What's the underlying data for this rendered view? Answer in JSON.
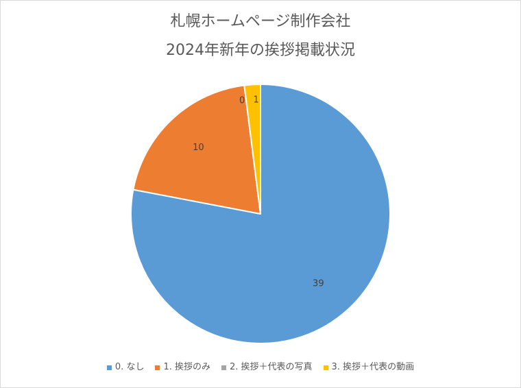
{
  "chart_data": {
    "type": "pie",
    "title": "札幌ホームページ制作会社",
    "subtitle": "2024年新年の挨拶掲載状況",
    "categories": [
      "0. なし",
      "1. 挨拶のみ",
      "2. 挨拶＋代表の写真",
      "3. 挨拶＋代表の動画"
    ],
    "values": [
      39,
      10,
      0,
      1
    ],
    "data_labels": [
      "39",
      "10",
      "0",
      "1"
    ],
    "colors": [
      "#5b9bd5",
      "#ed7d31",
      "#a5a5a5",
      "#ffc000"
    ],
    "legend_position": "bottom"
  }
}
